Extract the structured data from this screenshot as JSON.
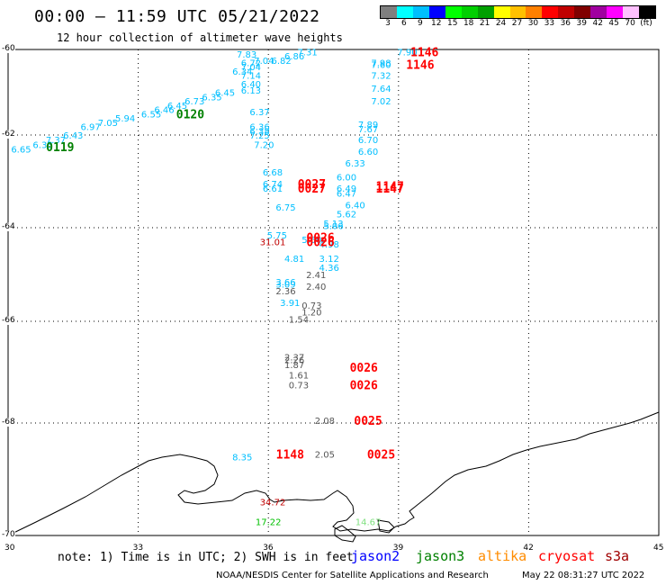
{
  "header": {
    "title": "00:00 – 11:59 UTC 05/21/2022",
    "subtitle": "12 hour collection of altimeter wave heights"
  },
  "colorbar": {
    "colors": [
      "#7f7f7f",
      "#00ffff",
      "#00bfff",
      "#0000ff",
      "#00ff00",
      "#00d000",
      "#00a000",
      "#ffff00",
      "#ffc000",
      "#ff8000",
      "#ff0000",
      "#c00000",
      "#800000",
      "#a000a0",
      "#ff00ff",
      "#ffc0ff",
      "#000000"
    ],
    "ticks": [
      "3",
      "6",
      "9",
      "12",
      "15",
      "18",
      "21",
      "24",
      "27",
      "30",
      "33",
      "36",
      "39",
      "42",
      "45",
      "70",
      "(ft)"
    ]
  },
  "axes": {
    "lon_labels": [
      "30",
      "33",
      "36",
      "39",
      "42",
      "45"
    ],
    "lat_labels": [
      "-60",
      "-62",
      "-64",
      "-66",
      "-68",
      "-70"
    ]
  },
  "footer": {
    "note": "note: 1) Time is in UTC; 2) SWH is in feet",
    "satellites": [
      {
        "name": "jason2",
        "color": "#0000ff"
      },
      {
        "name": "jason3",
        "color": "#008000"
      },
      {
        "name": "altika",
        "color": "#ff8c00"
      },
      {
        "name": "cryosat",
        "color": "#ff0000"
      },
      {
        "name": "s3a",
        "color": "#a00000"
      }
    ],
    "credit": "NOAA/NESDIS Center for Satellite Applications and Research",
    "timestamp": "May 22 08:31:27 UTC 2022"
  },
  "wave_heights": [
    {
      "lon": 30.3,
      "lat": -62.3,
      "text": "6.65",
      "color": "#00bfff"
    },
    {
      "lon": 30.8,
      "lat": -62.2,
      "text": "6.33",
      "color": "#00bfff"
    },
    {
      "lon": 31.1,
      "lat": -62.1,
      "text": "7.37",
      "color": "#00bfff"
    },
    {
      "lon": 31.5,
      "lat": -62.0,
      "text": "6.43",
      "color": "#00bfff"
    },
    {
      "lon": 31.9,
      "lat": -61.8,
      "text": "6.97",
      "color": "#00bfff"
    },
    {
      "lon": 32.3,
      "lat": -61.7,
      "text": "7.05",
      "color": "#00bfff"
    },
    {
      "lon": 32.7,
      "lat": -61.6,
      "text": "5.94",
      "color": "#00bfff"
    },
    {
      "lon": 33.3,
      "lat": -61.5,
      "text": "6.55",
      "color": "#00bfff"
    },
    {
      "lon": 33.6,
      "lat": -61.4,
      "text": "6.46",
      "color": "#00bfff"
    },
    {
      "lon": 33.9,
      "lat": -61.3,
      "text": "6.45",
      "color": "#00bfff"
    },
    {
      "lon": 34.3,
      "lat": -61.2,
      "text": "6.73",
      "color": "#00bfff"
    },
    {
      "lon": 34.7,
      "lat": -61.1,
      "text": "6.35",
      "color": "#00bfff"
    },
    {
      "lon": 35.0,
      "lat": -61.0,
      "text": "6.45",
      "color": "#00bfff"
    },
    {
      "lon": 35.5,
      "lat": -60.1,
      "text": "7.83",
      "color": "#00bfff"
    },
    {
      "lon": 35.6,
      "lat": -60.3,
      "text": "6.72",
      "color": "#00bfff"
    },
    {
      "lon": 35.6,
      "lat": -60.4,
      "text": "7.04",
      "color": "#00bfff"
    },
    {
      "lon": 35.4,
      "lat": -60.5,
      "text": "6.34",
      "color": "#00bfff"
    },
    {
      "lon": 35.6,
      "lat": -60.6,
      "text": "7.14",
      "color": "#00bfff"
    },
    {
      "lon": 35.6,
      "lat": -60.8,
      "text": "6.40",
      "color": "#00bfff"
    },
    {
      "lon": 35.6,
      "lat": -60.95,
      "text": "6.13",
      "color": "#00bfff"
    },
    {
      "lon": 35.9,
      "lat": -60.25,
      "text": "7.04",
      "color": "#00bfff"
    },
    {
      "lon": 36.3,
      "lat": -60.25,
      "text": "6.82",
      "color": "#00bfff"
    },
    {
      "lon": 36.6,
      "lat": -60.15,
      "text": "6.86",
      "color": "#00bfff"
    },
    {
      "lon": 36.9,
      "lat": -60.05,
      "text": "7.31",
      "color": "#00bfff"
    },
    {
      "lon": 35.8,
      "lat": -61.45,
      "text": "6.37",
      "color": "#00bfff"
    },
    {
      "lon": 35.8,
      "lat": -61.8,
      "text": "6.36",
      "color": "#00bfff"
    },
    {
      "lon": 35.8,
      "lat": -61.9,
      "text": "6.38",
      "color": "#00bfff"
    },
    {
      "lon": 35.8,
      "lat": -62.0,
      "text": "7.25",
      "color": "#00bfff"
    },
    {
      "lon": 35.9,
      "lat": -62.2,
      "text": "7.20",
      "color": "#00bfff"
    },
    {
      "lon": 36.1,
      "lat": -62.8,
      "text": "6.68",
      "color": "#00bfff"
    },
    {
      "lon": 36.1,
      "lat": -63.05,
      "text": "6.74",
      "color": "#00bfff"
    },
    {
      "lon": 36.1,
      "lat": -63.15,
      "text": "6.61",
      "color": "#00bfff"
    },
    {
      "lon": 36.4,
      "lat": -63.55,
      "text": "6.75",
      "color": "#00bfff"
    },
    {
      "lon": 39.2,
      "lat": -60.05,
      "text": "7.90",
      "color": "#00bfff"
    },
    {
      "lon": 38.6,
      "lat": -60.3,
      "text": "7.98",
      "color": "#00bfff"
    },
    {
      "lon": 38.6,
      "lat": -60.35,
      "text": "7.60",
      "color": "#00bfff"
    },
    {
      "lon": 38.6,
      "lat": -60.6,
      "text": "7.32",
      "color": "#00bfff"
    },
    {
      "lon": 38.6,
      "lat": -60.9,
      "text": "7.64",
      "color": "#00bfff"
    },
    {
      "lon": 38.6,
      "lat": -61.2,
      "text": "7.02",
      "color": "#00bfff"
    },
    {
      "lon": 38.3,
      "lat": -61.75,
      "text": "7.89",
      "color": "#00bfff"
    },
    {
      "lon": 38.3,
      "lat": -61.85,
      "text": "7.67",
      "color": "#00bfff"
    },
    {
      "lon": 38.3,
      "lat": -62.1,
      "text": "6.70",
      "color": "#00bfff"
    },
    {
      "lon": 38.3,
      "lat": -62.35,
      "text": "6.60",
      "color": "#00bfff"
    },
    {
      "lon": 38.0,
      "lat": -62.6,
      "text": "6.33",
      "color": "#00bfff"
    },
    {
      "lon": 37.8,
      "lat": -62.9,
      "text": "6.00",
      "color": "#00bfff"
    },
    {
      "lon": 37.8,
      "lat": -63.15,
      "text": "6.49",
      "color": "#00bfff"
    },
    {
      "lon": 37.8,
      "lat": -63.25,
      "text": "6.47",
      "color": "#00bfff"
    },
    {
      "lon": 38.0,
      "lat": -63.5,
      "text": "6.40",
      "color": "#00bfff"
    },
    {
      "lon": 37.8,
      "lat": -63.7,
      "text": "5.62",
      "color": "#00bfff"
    },
    {
      "lon": 37.5,
      "lat": -63.9,
      "text": "5.13",
      "color": "#00bfff"
    },
    {
      "lon": 37.5,
      "lat": -63.95,
      "text": "5.06",
      "color": "#00bfff"
    },
    {
      "lon": 36.2,
      "lat": -64.15,
      "text": "5.75",
      "color": "#00bfff"
    },
    {
      "lon": 37.0,
      "lat": -64.25,
      "text": "5.50",
      "color": "#00bfff"
    },
    {
      "lon": 37.4,
      "lat": -64.35,
      "text": "4.98",
      "color": "#00bfff"
    },
    {
      "lon": 36.6,
      "lat": -64.65,
      "text": "4.81",
      "color": "#00bfff"
    },
    {
      "lon": 37.4,
      "lat": -64.65,
      "text": "3.12",
      "color": "#00bfff"
    },
    {
      "lon": 37.4,
      "lat": -64.85,
      "text": "4.36",
      "color": "#00bfff"
    },
    {
      "lon": 36.4,
      "lat": -65.15,
      "text": "3.66",
      "color": "#00bfff"
    },
    {
      "lon": 36.4,
      "lat": -65.2,
      "text": "3.09",
      "color": "#00bfff"
    },
    {
      "lon": 37.1,
      "lat": -65.0,
      "text": "2.41",
      "color": "#555555"
    },
    {
      "lon": 37.1,
      "lat": -65.25,
      "text": "2.40",
      "color": "#555555"
    },
    {
      "lon": 36.4,
      "lat": -65.35,
      "text": "2.36",
      "color": "#555555"
    },
    {
      "lon": 36.5,
      "lat": -65.6,
      "text": "3.91",
      "color": "#00bfff"
    },
    {
      "lon": 37.0,
      "lat": -65.65,
      "text": "0.73",
      "color": "#555555"
    },
    {
      "lon": 37.0,
      "lat": -65.8,
      "text": "1.20",
      "color": "#555555"
    },
    {
      "lon": 36.7,
      "lat": -65.95,
      "text": "1.54",
      "color": "#555555"
    },
    {
      "lon": 36.6,
      "lat": -66.7,
      "text": "2.37",
      "color": "#555555"
    },
    {
      "lon": 36.6,
      "lat": -66.75,
      "text": "2.26",
      "color": "#555555"
    },
    {
      "lon": 36.6,
      "lat": -66.85,
      "text": "1.87",
      "color": "#555555"
    },
    {
      "lon": 36.7,
      "lat": -67.05,
      "text": "1.61",
      "color": "#555555"
    },
    {
      "lon": 36.7,
      "lat": -67.25,
      "text": "0.73",
      "color": "#555555"
    },
    {
      "lon": 37.3,
      "lat": -67.95,
      "text": "2.08",
      "color": "#555555"
    },
    {
      "lon": 37.3,
      "lat": -68.55,
      "text": "2.05",
      "color": "#555555"
    },
    {
      "lon": 35.4,
      "lat": -68.6,
      "text": "8.35",
      "color": "#00bfff"
    },
    {
      "lon": 36.1,
      "lat": -64.3,
      "text": "31.01",
      "color": "#c00000"
    },
    {
      "lon": 36.1,
      "lat": -69.4,
      "text": "34.72",
      "color": "#c00000"
    },
    {
      "lon": 36.0,
      "lat": -69.75,
      "text": "17.22",
      "color": "#00c000"
    },
    {
      "lon": 38.3,
      "lat": -69.75,
      "text": "14.67",
      "color": "#80e080"
    }
  ],
  "time_labels": [
    {
      "lon": 31.2,
      "lat": -62.25,
      "text": "0119",
      "color": "#008000"
    },
    {
      "lon": 34.2,
      "lat": -61.5,
      "text": "0120",
      "color": "#008000"
    },
    {
      "lon": 39.6,
      "lat": -60.05,
      "text": "1146",
      "color": "#ff0000"
    },
    {
      "lon": 39.5,
      "lat": -60.35,
      "text": "1146",
      "color": "#ff0000"
    },
    {
      "lon": 37.0,
      "lat": -63.05,
      "text": "0027",
      "color": "#ff0000"
    },
    {
      "lon": 37.0,
      "lat": -63.15,
      "text": "0027",
      "color": "#ff0000"
    },
    {
      "lon": 38.8,
      "lat": -63.1,
      "text": "1147",
      "color": "#ff0000"
    },
    {
      "lon": 38.8,
      "lat": -63.15,
      "text": "1147",
      "color": "#ff0000"
    },
    {
      "lon": 37.2,
      "lat": -64.2,
      "text": "0026",
      "color": "#ff0000"
    },
    {
      "lon": 37.2,
      "lat": -64.3,
      "text": "0026",
      "color": "#ff0000"
    },
    {
      "lon": 38.2,
      "lat": -66.9,
      "text": "0026",
      "color": "#ff0000"
    },
    {
      "lon": 38.2,
      "lat": -67.25,
      "text": "0026",
      "color": "#ff0000"
    },
    {
      "lon": 38.3,
      "lat": -67.95,
      "text": "0025",
      "color": "#ff0000"
    },
    {
      "lon": 38.6,
      "lat": -68.55,
      "text": "0025",
      "color": "#ff0000"
    },
    {
      "lon": 36.5,
      "lat": -68.55,
      "text": "1148",
      "color": "#ff0000"
    }
  ]
}
